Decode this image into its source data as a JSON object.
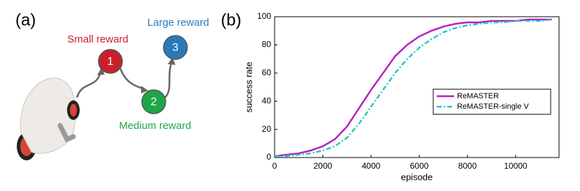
{
  "panel_a": {
    "label": "(a)",
    "nodes": [
      {
        "label": "1",
        "caption": "Small reward"
      },
      {
        "label": "2",
        "caption": "Medium reward"
      },
      {
        "label": "3",
        "caption": "Large reward"
      }
    ]
  },
  "chart_data": {
    "type": "line",
    "panel_label": "(b)",
    "xlabel": "episode",
    "ylabel": "success rate",
    "x": [
      0,
      500,
      1000,
      1500,
      2000,
      2500,
      3000,
      3500,
      4000,
      4500,
      5000,
      5500,
      6000,
      6500,
      7000,
      7500,
      8000,
      8500,
      9000,
      9500,
      10000,
      10500,
      11000,
      11500
    ],
    "series": [
      {
        "name": "ReMASTER",
        "color": "#b520c4",
        "dash": false,
        "values": [
          1,
          2,
          3,
          5,
          8,
          13,
          22,
          35,
          48,
          60,
          72,
          80,
          86,
          90,
          93,
          95,
          96,
          96,
          97,
          97,
          97,
          98,
          98,
          98
        ]
      },
      {
        "name": "ReMASTER-single V",
        "color": "#2cc4c4",
        "dash": true,
        "values": [
          1,
          1,
          2,
          3,
          5,
          8,
          14,
          24,
          36,
          48,
          60,
          70,
          78,
          84,
          89,
          92,
          94,
          95,
          96,
          96,
          97,
          97,
          97,
          98
        ]
      }
    ],
    "xlim": [
      0,
      11800
    ],
    "ylim": [
      0,
      100
    ],
    "xticks": [
      0,
      2000,
      4000,
      6000,
      8000,
      10000
    ],
    "yticks": [
      0,
      20,
      40,
      60,
      80,
      100
    ]
  }
}
